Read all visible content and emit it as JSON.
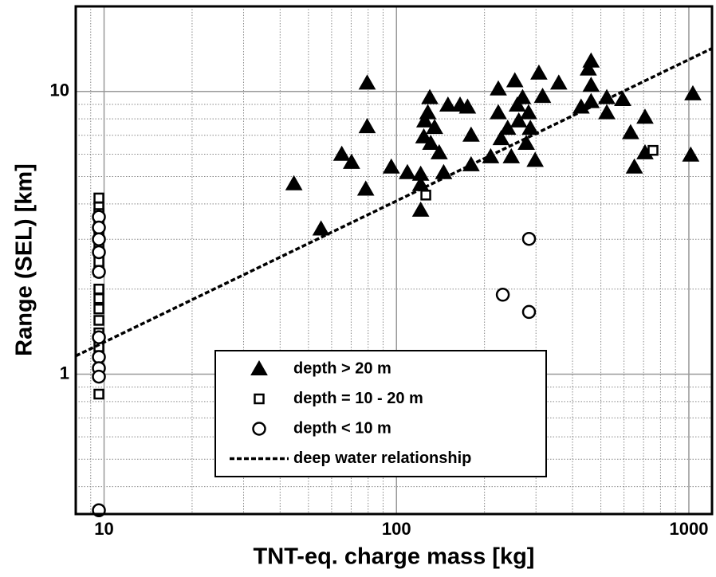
{
  "chart_data": {
    "type": "scatter",
    "xlabel": "TNT-eq. charge mass [kg]",
    "ylabel": "Range (SEL) [km]",
    "xscale": "log",
    "yscale": "log",
    "xlim": [
      8,
      1200
    ],
    "ylim": [
      0.32,
      20
    ],
    "xticks": [
      10,
      100,
      1000
    ],
    "yticks": [
      1,
      10
    ],
    "xminorticks": [
      9,
      20,
      30,
      40,
      50,
      60,
      70,
      80,
      90,
      200,
      300,
      400,
      500,
      600,
      700,
      800,
      900
    ],
    "yminorticks": [
      0.4,
      0.5,
      0.6,
      0.7,
      0.8,
      0.9,
      2,
      3,
      4,
      5,
      6,
      7,
      8,
      9
    ],
    "grid": true,
    "legend": "lower center",
    "series": [
      {
        "name": "depth > 20 m",
        "marker": "triangle",
        "filled": true,
        "color": "#000000",
        "x": [
          44.6,
          55.2,
          65,
          70.2,
          78.5,
          79.4,
          79.4,
          96,
          109,
          121,
          121,
          121,
          124,
          125,
          128,
          130,
          131,
          135,
          140,
          145,
          150,
          165,
          175,
          180,
          180,
          210,
          223,
          223,
          228,
          240,
          247,
          254,
          262,
          259,
          270,
          278,
          283,
          287,
          298,
          307,
          316,
          359,
          428,
          453,
          463,
          463,
          463,
          524,
          524,
          594,
          632,
          651,
          708,
          708,
          1032,
          1015
        ],
        "values": [
          4.71,
          3.26,
          5.99,
          5.61,
          4.51,
          10.7,
          7.5,
          5.4,
          5.16,
          5.09,
          3.8,
          4.68,
          6.9,
          7.86,
          8.4,
          9.5,
          6.55,
          7.45,
          6.06,
          5.16,
          8.94,
          8.94,
          8.8,
          7.0,
          5.5,
          5.87,
          10.2,
          8.4,
          6.8,
          7.4,
          5.87,
          10.9,
          7.86,
          8.94,
          9.5,
          6.55,
          8.4,
          7.4,
          5.7,
          11.6,
          9.6,
          10.7,
          8.8,
          12.0,
          12.8,
          10.5,
          9.2,
          9.5,
          8.4,
          9.36,
          7.14,
          5.4,
          8.1,
          6.06,
          9.8,
          5.95
        ]
      },
      {
        "name": "depth =  10 - 20 m",
        "marker": "square",
        "filled": false,
        "color": "#000000",
        "x": [
          9.6,
          9.6,
          9.6,
          9.6,
          9.6,
          9.6,
          9.6,
          9.6,
          9.6,
          9.6,
          9.6,
          9.6,
          9.6,
          9.6,
          9.6,
          9.6,
          9.6,
          126,
          754
        ],
        "values": [
          4.2,
          3.9,
          3.7,
          3.5,
          3.3,
          3.1,
          2.9,
          2.7,
          2.5,
          2.3,
          2.0,
          1.85,
          1.7,
          1.55,
          1.4,
          1.25,
          0.85,
          4.3,
          6.19
        ]
      },
      {
        "name": "depth < 10 m",
        "marker": "circle",
        "filled": false,
        "color": "#000000",
        "x": [
          9.6,
          9.6,
          9.6,
          9.6,
          9.6,
          9.6,
          9.6,
          9.6,
          9.6,
          9.6,
          231,
          284,
          284
        ],
        "values": [
          3.6,
          3.3,
          3.0,
          2.7,
          2.3,
          1.35,
          1.15,
          1.05,
          0.98,
          0.33,
          1.91,
          3.01,
          1.66
        ]
      },
      {
        "name": "deep water relationship",
        "marker": "dashed-line",
        "color": "#000000",
        "x": [
          8,
          1200
        ],
        "values": [
          1.16,
          14.2
        ]
      }
    ]
  }
}
